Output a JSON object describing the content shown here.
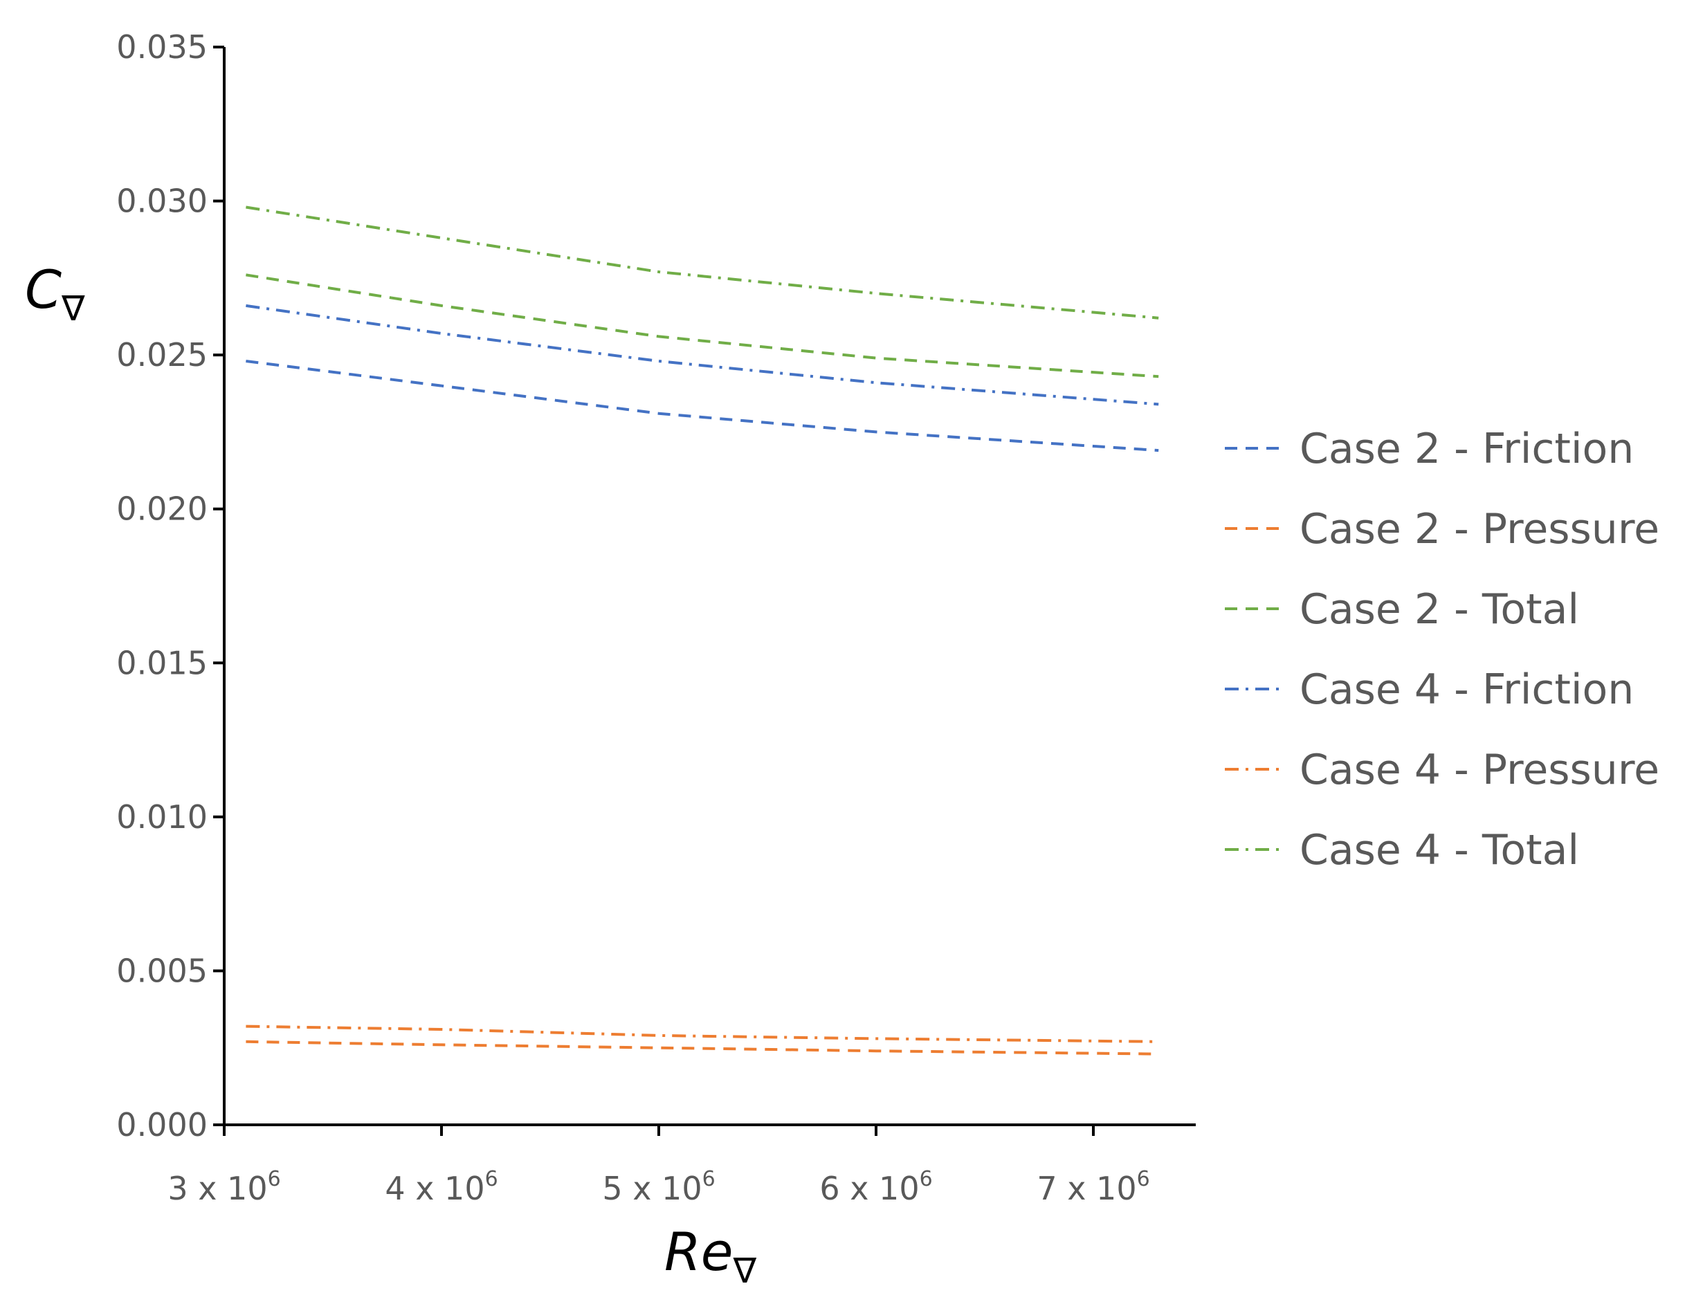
{
  "chart_data": {
    "type": "line",
    "xlabel": {
      "main": "Re",
      "subscript": "∇"
    },
    "ylabel": {
      "main": "C",
      "subscript": "∇"
    },
    "xlim": [
      3000000,
      7500000
    ],
    "ylim": [
      0,
      0.035
    ],
    "xticks": [
      {
        "value": 3000000,
        "label": "3 x 10",
        "exponent": "6"
      },
      {
        "value": 4000000,
        "label": "4 x 10",
        "exponent": "6"
      },
      {
        "value": 5000000,
        "label": "5 x 10",
        "exponent": "6"
      },
      {
        "value": 6000000,
        "label": "6 x 10",
        "exponent": "6"
      },
      {
        "value": 7000000,
        "label": "7 x 10",
        "exponent": "6"
      }
    ],
    "yticks": [
      {
        "value": 0.0,
        "label": "0.000"
      },
      {
        "value": 0.005,
        "label": "0.005"
      },
      {
        "value": 0.01,
        "label": "0.010"
      },
      {
        "value": 0.015,
        "label": "0.015"
      },
      {
        "value": 0.02,
        "label": "0.020"
      },
      {
        "value": 0.025,
        "label": "0.025"
      },
      {
        "value": 0.03,
        "label": "0.030"
      },
      {
        "value": 0.035,
        "label": "0.035"
      }
    ],
    "grid": false,
    "legend_position": "right",
    "x": [
      3100000,
      4000000,
      5000000,
      6000000,
      7300000
    ],
    "series": [
      {
        "name": "Case 2 - Friction",
        "color": "#4472C4",
        "dash": "dashed",
        "values": [
          0.0248,
          0.024,
          0.0231,
          0.0225,
          0.0219
        ]
      },
      {
        "name": "Case 2 - Pressure",
        "color": "#ED7D31",
        "dash": "dashed",
        "values": [
          0.0027,
          0.0026,
          0.0025,
          0.0024,
          0.0023
        ]
      },
      {
        "name": "Case 2 - Total",
        "color": "#70AD47",
        "dash": "dashed",
        "values": [
          0.0276,
          0.0266,
          0.0256,
          0.0249,
          0.0243
        ]
      },
      {
        "name": "Case 4 - Friction",
        "color": "#4472C4",
        "dash": "dashdot",
        "values": [
          0.0266,
          0.0257,
          0.0248,
          0.0241,
          0.0234
        ]
      },
      {
        "name": "Case 4 - Pressure",
        "color": "#ED7D31",
        "dash": "dashdot",
        "values": [
          0.0032,
          0.0031,
          0.0029,
          0.0028,
          0.0027
        ]
      },
      {
        "name": "Case 4 - Total",
        "color": "#70AD47",
        "dash": "dashdot",
        "values": [
          0.0298,
          0.0288,
          0.0277,
          0.027,
          0.0262
        ]
      }
    ]
  }
}
